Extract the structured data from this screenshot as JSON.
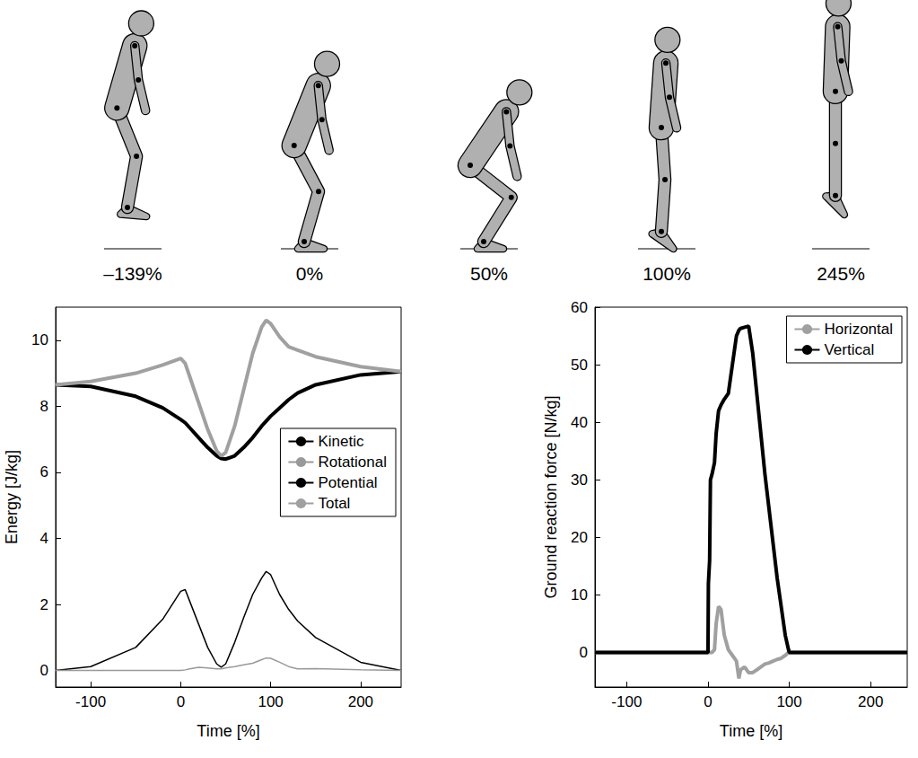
{
  "frames": {
    "labels": [
      "–139%",
      "0%",
      "50%",
      "100%",
      "245%"
    ]
  },
  "chart_data": [
    {
      "type": "line",
      "x_label": "Time [%]",
      "y_label": "Energy [J/kg]",
      "xlim": [
        -139,
        245
      ],
      "xticks": [
        -100,
        0,
        100,
        200
      ],
      "ylim": [
        -0.5,
        11
      ],
      "yticks": [
        0,
        2,
        4,
        6,
        8,
        10
      ],
      "grid": false,
      "legend": "right",
      "x": [
        -139,
        -100,
        -50,
        -20,
        0,
        5,
        10,
        20,
        30,
        40,
        45,
        50,
        60,
        70,
        80,
        90,
        95,
        100,
        110,
        120,
        130,
        150,
        200,
        245
      ],
      "series": [
        {
          "name": "Kinetic",
          "color": "#000000",
          "line_style": "thin",
          "values": [
            0,
            0.12,
            0.7,
            1.55,
            2.4,
            2.45,
            2.1,
            1.4,
            0.7,
            0.2,
            0.1,
            0.2,
            0.85,
            1.6,
            2.3,
            2.8,
            3.0,
            2.9,
            2.3,
            1.85,
            1.5,
            1.0,
            0.25,
            0
          ]
        },
        {
          "name": "Rotational",
          "color": "#999999",
          "line_style": "thin",
          "values": [
            0,
            0,
            0,
            0,
            0,
            0.02,
            0.05,
            0.1,
            0.08,
            0.05,
            0.05,
            0.08,
            0.12,
            0.17,
            0.22,
            0.33,
            0.38,
            0.37,
            0.25,
            0.12,
            0.05,
            0.06,
            0.02,
            0
          ]
        },
        {
          "name": "Potential",
          "color": "#000000",
          "line_style": "thick",
          "values": [
            8.65,
            8.6,
            8.3,
            7.95,
            7.6,
            7.5,
            7.35,
            7.05,
            6.75,
            6.5,
            6.42,
            6.4,
            6.5,
            6.75,
            7.05,
            7.4,
            7.55,
            7.7,
            7.95,
            8.2,
            8.4,
            8.65,
            8.95,
            9.05
          ]
        },
        {
          "name": "Total",
          "color": "#a0a0a0",
          "line_style": "thick",
          "values": [
            8.65,
            8.75,
            9.0,
            9.25,
            9.45,
            9.3,
            8.9,
            8.1,
            7.3,
            6.65,
            6.5,
            6.6,
            7.4,
            8.5,
            9.6,
            10.4,
            10.6,
            10.5,
            10.1,
            9.8,
            9.7,
            9.5,
            9.2,
            9.05
          ]
        }
      ]
    },
    {
      "type": "line",
      "x_label": "Time [%]",
      "y_label": "Ground reaction force [N/kg]",
      "xlim": [
        -139,
        245
      ],
      "xticks": [
        -100,
        0,
        100,
        200
      ],
      "ylim": [
        -6,
        60
      ],
      "yticks": [
        0,
        10,
        20,
        30,
        40,
        50,
        60
      ],
      "grid": false,
      "legend": "upper right",
      "x": [
        -139,
        0,
        0.5,
        2,
        3,
        5,
        8,
        10,
        13,
        16,
        20,
        25,
        30,
        35,
        38,
        40,
        45,
        50,
        55,
        60,
        65,
        70,
        75,
        80,
        85,
        90,
        95,
        99,
        100,
        245
      ],
      "series": [
        {
          "name": "Horizontal",
          "color": "#a0a0a0",
          "line_style": "thick",
          "values": [
            0,
            0,
            0,
            0,
            0,
            0,
            0.5,
            5,
            8,
            7.5,
            3,
            0.5,
            -0.5,
            -1.5,
            -4.5,
            -3,
            -2.5,
            -3.5,
            -3.5,
            -3,
            -2.5,
            -2,
            -1.8,
            -1.5,
            -1.2,
            -1,
            -0.5,
            0,
            0,
            0
          ]
        },
        {
          "name": "Vertical",
          "color": "#000000",
          "line_style": "thick",
          "values": [
            0,
            0,
            12,
            16,
            30,
            31,
            33,
            38,
            42,
            43,
            44,
            45,
            50,
            55,
            56,
            56.3,
            56.5,
            56.7,
            52,
            45,
            38,
            31,
            25,
            19,
            13,
            8,
            3,
            0.5,
            0,
            0
          ]
        }
      ]
    }
  ]
}
